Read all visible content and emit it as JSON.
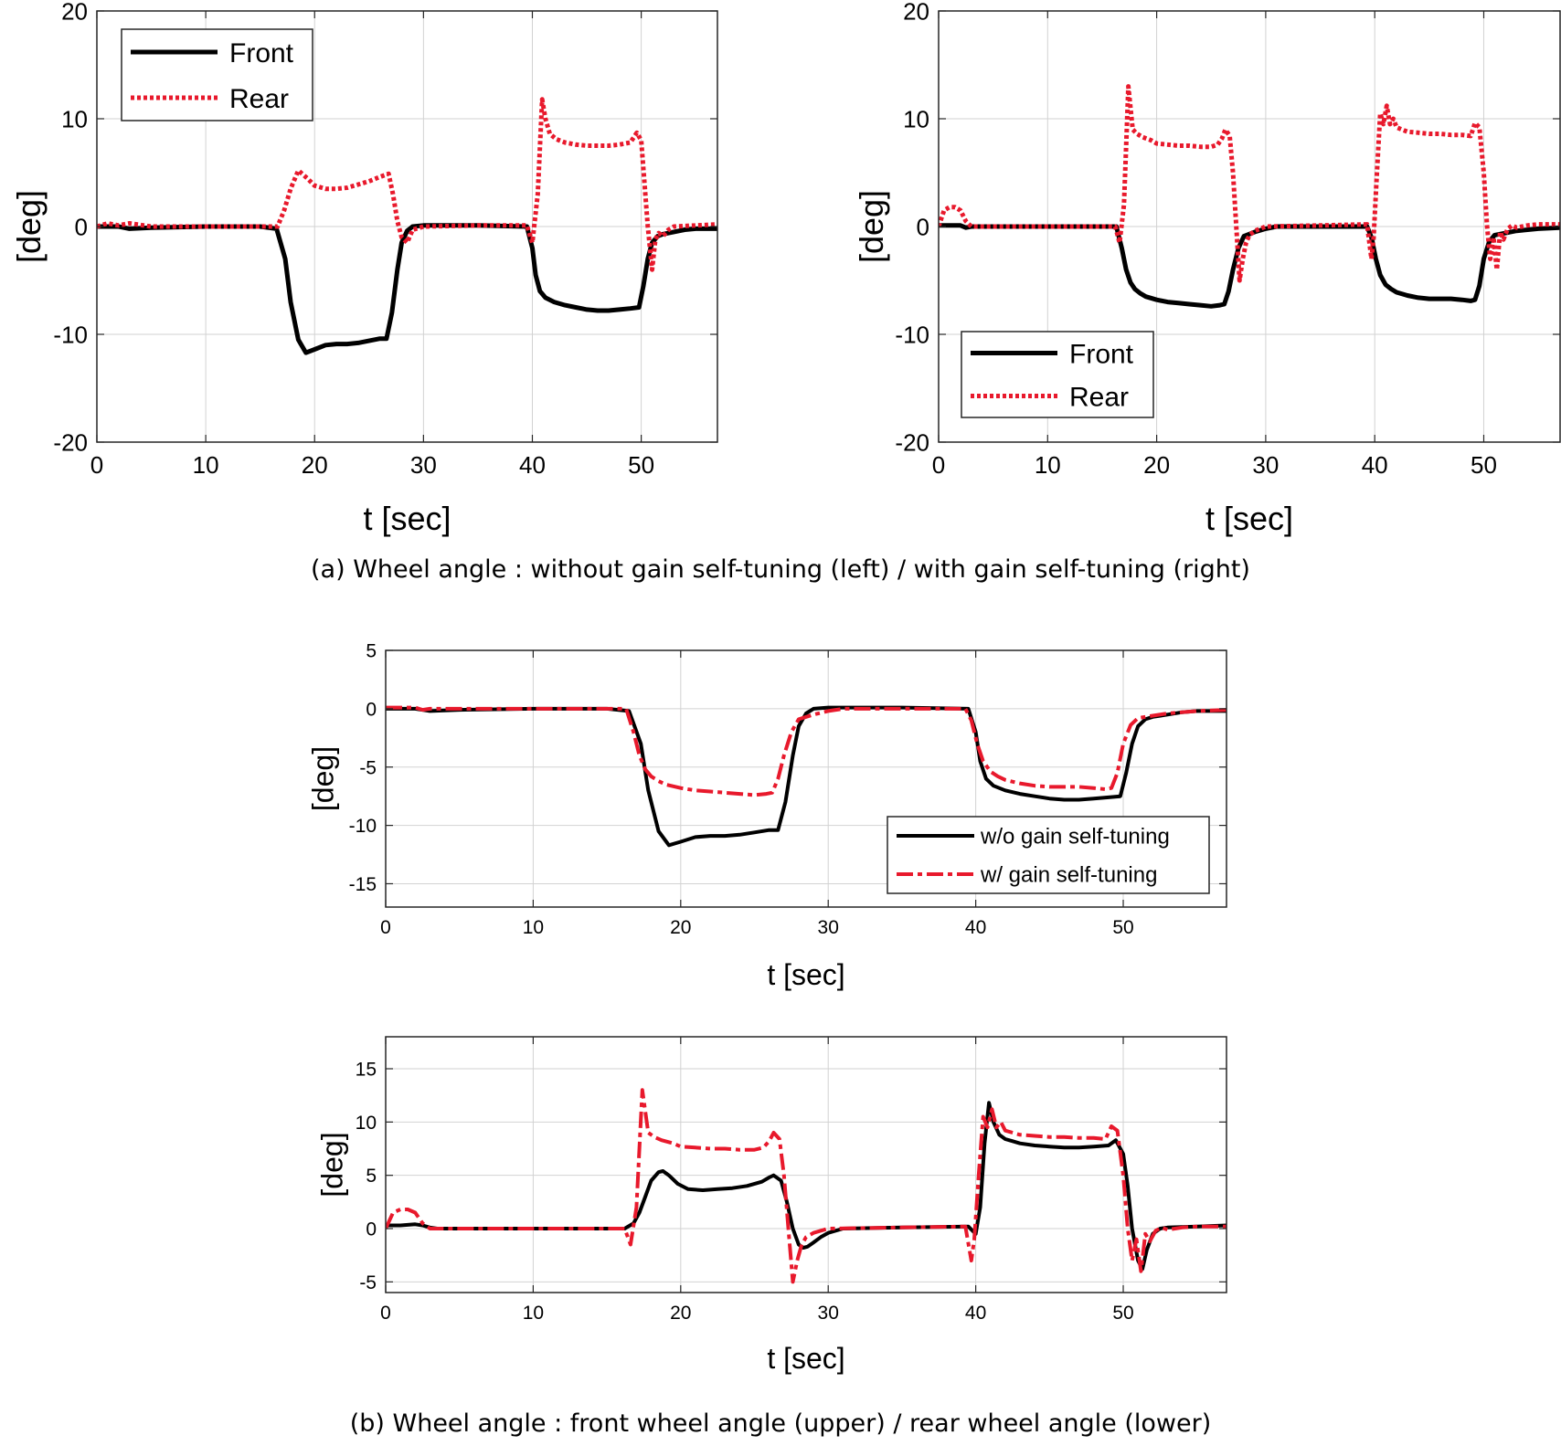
{
  "captions": {
    "a": "(a) Wheel angle : without gain self-tuning (left) / with gain self-tuning (right)",
    "b": "(b) Wheel angle : front wheel angle (upper) / rear wheel angle (lower)"
  },
  "chart_data": [
    {
      "type": "line",
      "xlabel": "t [sec]",
      "ylabel": "[deg]",
      "xlim": [
        0,
        57
      ],
      "ylim": [
        -20,
        20
      ],
      "xticks": [
        0,
        10,
        20,
        30,
        40,
        50
      ],
      "yticks": [
        -20,
        -10,
        0,
        10,
        20
      ],
      "grid": true,
      "legend_position": "top-left",
      "series": [
        {
          "name": "Front",
          "color": "#000000",
          "style": "solid",
          "x": [
            0,
            2,
            3,
            5,
            10,
            15,
            16.5,
            17.3,
            17.8,
            18.5,
            19.2,
            20,
            21,
            22,
            23,
            24,
            25,
            26,
            26.6,
            27.1,
            27.6,
            28,
            28.5,
            29,
            30,
            35,
            39.5,
            40,
            40.3,
            40.7,
            41.2,
            42,
            43,
            44,
            45,
            46,
            47,
            48,
            49,
            49.8,
            50.2,
            50.6,
            51,
            51.5,
            52,
            53,
            54,
            55,
            57
          ],
          "y": [
            0,
            0,
            -0.2,
            -0.1,
            0,
            0,
            -0.2,
            -3,
            -7,
            -10.5,
            -11.7,
            -11.4,
            -11,
            -10.9,
            -10.9,
            -10.8,
            -10.6,
            -10.4,
            -10.4,
            -8,
            -4,
            -1.5,
            -0.4,
            0,
            0.1,
            0.1,
            0,
            -2,
            -4.5,
            -6,
            -6.6,
            -7,
            -7.3,
            -7.5,
            -7.7,
            -7.8,
            -7.8,
            -7.7,
            -7.6,
            -7.5,
            -5.5,
            -3,
            -1.5,
            -0.9,
            -0.7,
            -0.5,
            -0.3,
            -0.2,
            -0.2
          ]
        },
        {
          "name": "Rear",
          "color": "#e8192c",
          "style": "dotted",
          "x": [
            0,
            1,
            2,
            3,
            5,
            10,
            15,
            16.6,
            17.2,
            17.8,
            18.5,
            19.3,
            20,
            21,
            22,
            23,
            24,
            25,
            26,
            26.8,
            27.2,
            27.6,
            28,
            28.5,
            29,
            30,
            35,
            39.5,
            40,
            40.5,
            40.9,
            41.2,
            41.6,
            42.2,
            43,
            44,
            45,
            46,
            47,
            48,
            49,
            49.6,
            50,
            50.3,
            50.6,
            51,
            51.3,
            51.6,
            52,
            52.5,
            53,
            55,
            57
          ],
          "y": [
            0,
            0.3,
            0.1,
            0.3,
            0,
            0,
            0,
            0,
            1.5,
            3.5,
            5.2,
            4.5,
            3.8,
            3.5,
            3.5,
            3.6,
            3.9,
            4.2,
            4.6,
            4.9,
            3,
            0.5,
            -1,
            -1.5,
            -0.3,
            0,
            0.1,
            0.1,
            -1.5,
            3,
            11.8,
            10,
            8.6,
            8.1,
            7.8,
            7.6,
            7.5,
            7.5,
            7.5,
            7.6,
            7.8,
            8.7,
            8,
            4,
            0,
            -4,
            -1.2,
            -0.6,
            -0.9,
            -0.3,
            0,
            0.1,
            0.2
          ]
        }
      ]
    },
    {
      "type": "line",
      "xlabel": "t [sec]",
      "ylabel": "[deg]",
      "xlim": [
        0,
        57
      ],
      "ylim": [
        -20,
        20
      ],
      "xticks": [
        0,
        10,
        20,
        30,
        40,
        50
      ],
      "yticks": [
        -20,
        -10,
        0,
        10,
        20
      ],
      "grid": true,
      "legend_position": "bottom-left",
      "series": [
        {
          "name": "Front",
          "color": "#000000",
          "style": "solid",
          "x": [
            0,
            2,
            2.5,
            3,
            5,
            10,
            15,
            16.3,
            16.8,
            17.2,
            17.6,
            18,
            18.5,
            19,
            20,
            21,
            22,
            23,
            24,
            25,
            25.8,
            26.2,
            26.6,
            27,
            27.5,
            28,
            29,
            30,
            31,
            35,
            39.3,
            39.7,
            40.1,
            40.5,
            41,
            41.5,
            42,
            43,
            44,
            45,
            46,
            47,
            48,
            48.8,
            49.2,
            49.6,
            50,
            50.5,
            51,
            52,
            53,
            55,
            57
          ],
          "y": [
            0.1,
            0.1,
            -0.1,
            0,
            0,
            0,
            0,
            0,
            -2,
            -4,
            -5.2,
            -5.8,
            -6.2,
            -6.5,
            -6.8,
            -7,
            -7.1,
            -7.2,
            -7.3,
            -7.4,
            -7.3,
            -7.2,
            -6,
            -4,
            -2,
            -0.9,
            -0.5,
            -0.2,
            0,
            0,
            0,
            -1,
            -3,
            -4.5,
            -5.4,
            -5.8,
            -6.1,
            -6.4,
            -6.6,
            -6.7,
            -6.7,
            -6.7,
            -6.8,
            -6.9,
            -6.8,
            -5.5,
            -3,
            -1.4,
            -0.8,
            -0.6,
            -0.4,
            -0.2,
            -0.1
          ]
        },
        {
          "name": "Rear",
          "color": "#e8192c",
          "style": "dotted",
          "x": [
            0,
            0.5,
            1,
            1.5,
            2,
            2.5,
            3,
            3.5,
            5,
            10,
            15,
            16.2,
            16.6,
            17,
            17.4,
            17.8,
            18.2,
            18.7,
            19.5,
            20,
            21,
            22,
            23,
            24,
            25,
            25.6,
            26,
            26.3,
            26.7,
            27,
            27.3,
            27.6,
            27.9,
            28.2,
            28.5,
            29,
            30,
            35,
            39.3,
            39.7,
            39.9,
            40.2,
            40.5,
            40.8,
            41.1,
            41.4,
            41.7,
            42,
            42.5,
            43,
            44,
            45,
            46,
            47,
            48,
            48.8,
            49.2,
            49.6,
            50,
            50.3,
            50.6,
            50.9,
            51.2,
            51.5,
            51.8,
            52.2,
            52.6,
            53,
            54,
            55,
            57
          ],
          "y": [
            0,
            1.5,
            1.8,
            1.8,
            1.5,
            0.5,
            0,
            0,
            0,
            0,
            0,
            0,
            -1.5,
            2,
            13,
            9,
            8.6,
            8.3,
            8,
            7.7,
            7.6,
            7.5,
            7.5,
            7.4,
            7.4,
            7.6,
            8.2,
            9,
            8.4,
            5,
            0,
            -5,
            -3,
            -1.5,
            -0.8,
            -0.4,
            0,
            0.1,
            0.2,
            -3,
            -1,
            5,
            10.5,
            9.5,
            11.2,
            9.5,
            10,
            9.2,
            9,
            8.8,
            8.7,
            8.6,
            8.6,
            8.5,
            8.5,
            8.4,
            9.6,
            9.2,
            5,
            0,
            -3,
            -1,
            -4,
            -0.5,
            -1.2,
            -0.2,
            0.1,
            -0.1,
            0.1,
            0.2,
            0.2
          ]
        }
      ]
    },
    {
      "type": "line",
      "xlabel": "t [sec]",
      "ylabel": "[deg]",
      "xlim": [
        0,
        57
      ],
      "ylim": [
        -17,
        5
      ],
      "xticks": [
        0,
        10,
        20,
        30,
        40,
        50
      ],
      "yticks": [
        -15,
        -10,
        -5,
        0,
        5
      ],
      "grid": true,
      "legend_position": "bottom-right",
      "series": [
        {
          "name": "w/o gain self-tuning",
          "color": "#000000",
          "style": "solid",
          "x": [
            0,
            2,
            3,
            5,
            10,
            15,
            16.5,
            17.3,
            17.8,
            18.5,
            19.2,
            20,
            21,
            22,
            23,
            24,
            25,
            26,
            26.6,
            27.1,
            27.6,
            28,
            28.5,
            29,
            30,
            35,
            39.5,
            40,
            40.3,
            40.7,
            41.2,
            42,
            43,
            44,
            45,
            46,
            47,
            48,
            49,
            49.8,
            50.2,
            50.6,
            51,
            51.5,
            52,
            53,
            54,
            55,
            57
          ],
          "y": [
            0,
            0,
            -0.2,
            -0.1,
            0,
            0,
            -0.2,
            -3,
            -7,
            -10.5,
            -11.7,
            -11.4,
            -11,
            -10.9,
            -10.9,
            -10.8,
            -10.6,
            -10.4,
            -10.4,
            -8,
            -4,
            -1.5,
            -0.4,
            0,
            0.1,
            0.1,
            0,
            -2,
            -4.5,
            -6,
            -6.6,
            -7,
            -7.3,
            -7.5,
            -7.7,
            -7.8,
            -7.8,
            -7.7,
            -7.6,
            -7.5,
            -5.5,
            -3,
            -1.5,
            -0.9,
            -0.7,
            -0.5,
            -0.3,
            -0.2,
            -0.2
          ]
        },
        {
          "name": "w/ gain self-tuning",
          "color": "#e8192c",
          "style": "dashdot",
          "x": [
            0,
            2,
            2.5,
            3,
            5,
            10,
            15,
            16.3,
            16.8,
            17.2,
            17.6,
            18,
            18.5,
            19,
            20,
            21,
            22,
            23,
            24,
            25,
            25.8,
            26.2,
            26.6,
            27,
            27.5,
            28,
            29,
            30,
            31,
            35,
            39.3,
            39.7,
            40.1,
            40.5,
            41,
            41.5,
            42,
            43,
            44,
            45,
            46,
            47,
            48,
            48.8,
            49.2,
            49.6,
            50,
            50.5,
            51,
            52,
            53,
            55,
            57
          ],
          "y": [
            0.1,
            0.1,
            -0.1,
            0,
            0,
            0,
            0,
            0,
            -2,
            -4,
            -5.2,
            -5.8,
            -6.2,
            -6.5,
            -6.8,
            -7,
            -7.1,
            -7.2,
            -7.3,
            -7.4,
            -7.3,
            -7.2,
            -6,
            -4,
            -2,
            -0.9,
            -0.5,
            -0.2,
            0,
            0,
            0,
            -1,
            -3,
            -4.5,
            -5.4,
            -5.8,
            -6.1,
            -6.4,
            -6.6,
            -6.7,
            -6.7,
            -6.7,
            -6.8,
            -6.9,
            -6.8,
            -5.5,
            -3,
            -1.4,
            -0.8,
            -0.6,
            -0.4,
            -0.2,
            -0.1
          ]
        }
      ]
    },
    {
      "type": "line",
      "xlabel": "t [sec]",
      "ylabel": "[deg]",
      "xlim": [
        0,
        57
      ],
      "ylim": [
        -6,
        18
      ],
      "xticks": [
        0,
        10,
        20,
        30,
        40,
        50
      ],
      "yticks": [
        -5,
        0,
        5,
        10,
        15
      ],
      "grid": true,
      "legend_position": "none",
      "series": [
        {
          "name": "",
          "color": "#000000",
          "style": "solid",
          "x": [
            0,
            1,
            2,
            2.5,
            3,
            3.5,
            4,
            5,
            10,
            15,
            16.2,
            16.8,
            17.2,
            17.6,
            18,
            18.5,
            18.8,
            19.2,
            19.8,
            20.5,
            21.5,
            22.5,
            23.5,
            24.5,
            25.5,
            26,
            26.3,
            26.8,
            27.2,
            27.6,
            28,
            28.3,
            28.6,
            29,
            29.5,
            30,
            31,
            35,
            39.5,
            40,
            40.3,
            40.6,
            40.9,
            41.2,
            41.6,
            42,
            42.5,
            43,
            44,
            45,
            46,
            47,
            48,
            49,
            49.5,
            50,
            50.3,
            50.6,
            51,
            51.3,
            51.6,
            52,
            52.5,
            53,
            55,
            57
          ],
          "y": [
            0.3,
            0.3,
            0.4,
            0.3,
            0.1,
            0,
            0,
            0,
            0,
            0,
            0,
            0.5,
            1.5,
            3,
            4.5,
            5.3,
            5.4,
            5,
            4.2,
            3.7,
            3.6,
            3.7,
            3.8,
            4,
            4.4,
            4.8,
            5,
            4.5,
            2.5,
            0,
            -1.5,
            -1.8,
            -1.7,
            -1.3,
            -0.8,
            -0.4,
            0,
            0.1,
            0.2,
            -0.5,
            2,
            8,
            11.8,
            10,
            8.8,
            8.4,
            8.2,
            8,
            7.8,
            7.7,
            7.6,
            7.6,
            7.7,
            7.8,
            8.3,
            7,
            4,
            0,
            -3,
            -3.8,
            -2,
            -0.5,
            0,
            0.1,
            0.2,
            0.3
          ]
        },
        {
          "name": "",
          "color": "#e8192c",
          "style": "dashdot",
          "x": [
            0,
            0.5,
            1,
            1.5,
            2,
            2.5,
            3,
            3.5,
            5,
            10,
            15,
            16.2,
            16.6,
            17,
            17.4,
            17.8,
            18.2,
            18.7,
            19.5,
            20,
            21,
            22,
            23,
            24,
            25,
            25.6,
            26,
            26.3,
            26.7,
            27,
            27.3,
            27.6,
            27.9,
            28.2,
            28.5,
            29,
            30,
            35,
            39.3,
            39.7,
            39.9,
            40.2,
            40.5,
            40.8,
            41.1,
            41.4,
            41.7,
            42,
            42.5,
            43,
            44,
            45,
            46,
            47,
            48,
            48.8,
            49.2,
            49.6,
            50,
            50.3,
            50.6,
            50.9,
            51.2,
            51.5,
            51.8,
            52.2,
            52.6,
            53,
            54,
            55,
            57
          ],
          "y": [
            0,
            1.5,
            1.8,
            1.8,
            1.5,
            0.5,
            0,
            0,
            0,
            0,
            0,
            0,
            -1.5,
            2,
            13,
            9,
            8.6,
            8.3,
            8,
            7.7,
            7.6,
            7.5,
            7.5,
            7.4,
            7.4,
            7.6,
            8.2,
            9,
            8.4,
            5,
            0,
            -5,
            -3,
            -1.5,
            -0.8,
            -0.4,
            0,
            0.1,
            0.2,
            -3,
            -1,
            5,
            10.5,
            9.5,
            11.2,
            9.5,
            10,
            9.2,
            9,
            8.8,
            8.7,
            8.6,
            8.6,
            8.5,
            8.5,
            8.4,
            9.6,
            9.2,
            5,
            0,
            -3,
            -1,
            -4,
            -0.5,
            -1.2,
            -0.2,
            0.1,
            -0.1,
            0.1,
            0.2,
            0.2
          ]
        }
      ]
    }
  ]
}
